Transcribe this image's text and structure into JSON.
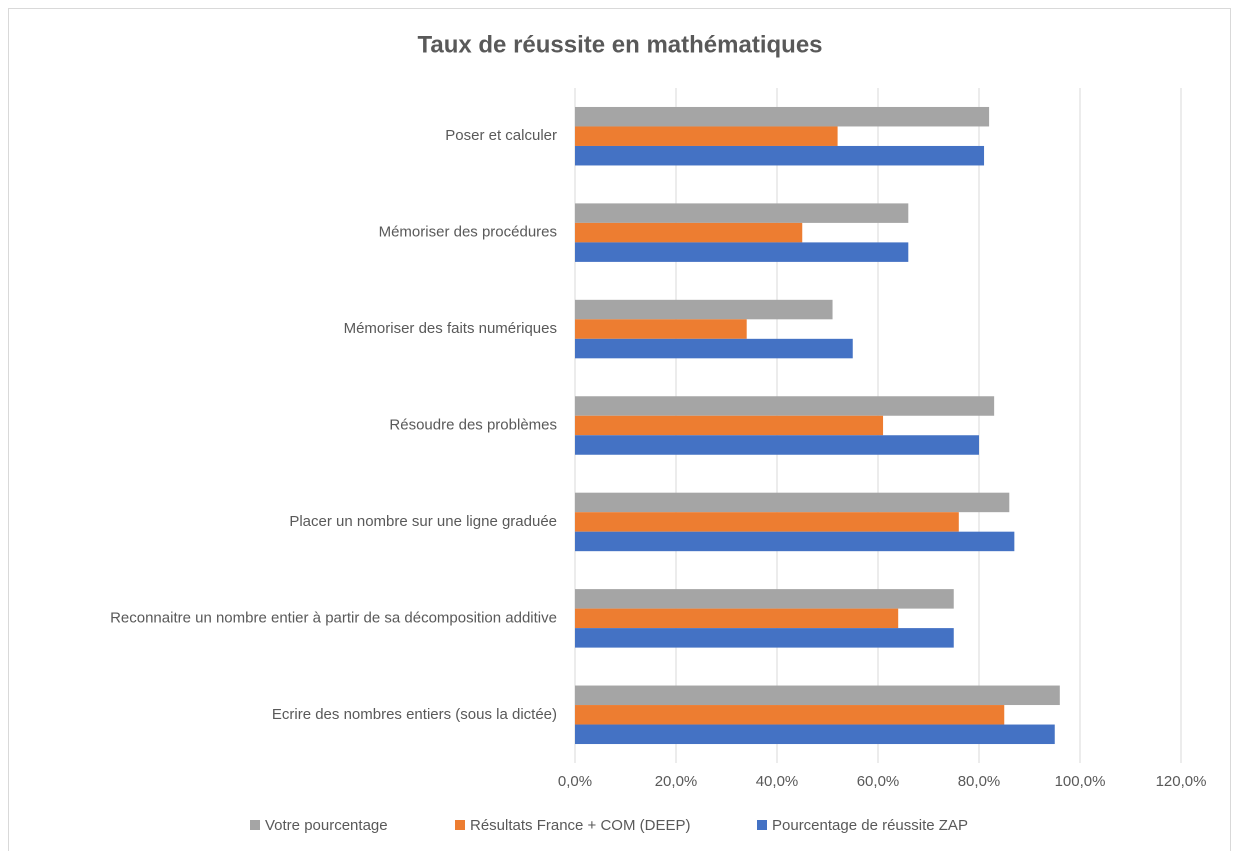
{
  "chart_data": {
    "type": "hbar",
    "title": "Taux de réussite en mathématiques",
    "categories": [
      "Poser et calculer",
      "Mémoriser des procédures",
      "Mémoriser des faits numériques",
      "Résoudre des problèmes",
      "Placer un nombre sur une ligne graduée",
      "Reconnaitre un nombre entier à partir de sa décomposition additive",
      "Ecrire des nombres entiers (sous la dictée)"
    ],
    "series": [
      {
        "name": "Votre pourcentage",
        "color": "#a5a5a5",
        "values": [
          82,
          66,
          51,
          83,
          86,
          75,
          96
        ]
      },
      {
        "name": "Résultats France + COM (DEEP)",
        "color": "#ed7d31",
        "values": [
          52,
          45,
          34,
          61,
          76,
          64,
          85
        ]
      },
      {
        "name": "Pourcentage de réussite ZAP",
        "color": "#4472c4",
        "values": [
          81,
          66,
          55,
          80,
          87,
          75,
          95
        ]
      }
    ],
    "xlim": [
      0,
      120
    ],
    "xticks": [
      {
        "value": 0,
        "label": "0,0%"
      },
      {
        "value": 20,
        "label": "20,0%"
      },
      {
        "value": 40,
        "label": "40,0%"
      },
      {
        "value": 60,
        "label": "60,0%"
      },
      {
        "value": 80,
        "label": "80,0%"
      },
      {
        "value": 100,
        "label": "100,0%"
      },
      {
        "value": 120,
        "label": "120,0%"
      }
    ],
    "grid": true,
    "legend": "bottom"
  }
}
